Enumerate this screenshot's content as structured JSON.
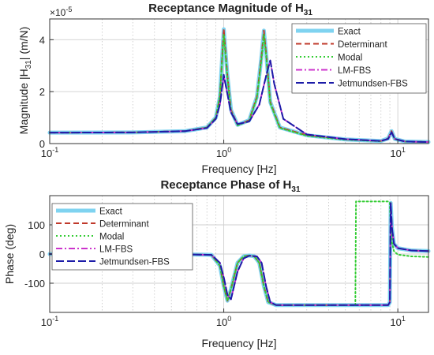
{
  "chart_data": [
    {
      "type": "line",
      "title": "Receptance Magnitude of",
      "title_sym": "H",
      "title_sub": "31",
      "xlabel": "Frequency [Hz]",
      "ylabel": "Magnitude  |H",
      "ylabel_sub": "31",
      "ylabel_unit": "|  (m/N)",
      "x_scale": "log",
      "xlim": [
        0.1,
        15
      ],
      "ylim": [
        0,
        4.8
      ],
      "y_multiplier": "×10",
      "y_multiplier_exp": "-5",
      "xticks": [
        0.1,
        1,
        10
      ],
      "xtick_labels": [
        "10",
        "10",
        "10"
      ],
      "xtick_exps": [
        "-1",
        "0",
        "1"
      ],
      "yticks": [
        0,
        2,
        4
      ],
      "ytick_labels": [
        "0",
        "2",
        "4"
      ],
      "grid": true,
      "legend_position": "top-right",
      "series": [
        {
          "name": "Exact",
          "color": "#7fd3f0",
          "dash": "solid",
          "x": [
            0.1,
            0.3,
            0.6,
            0.8,
            0.9,
            0.95,
            1.0,
            1.05,
            1.1,
            1.2,
            1.4,
            1.55,
            1.65,
            1.7,
            1.75,
            1.85,
            2.1,
            3,
            5,
            8,
            8.8,
            9.2,
            9.6,
            11,
            15
          ],
          "y": [
            0.42,
            0.43,
            0.48,
            0.62,
            1.0,
            1.8,
            4.4,
            2.6,
            1.3,
            0.72,
            0.9,
            1.8,
            3.4,
            4.35,
            3.5,
            1.6,
            0.62,
            0.32,
            0.16,
            0.1,
            0.2,
            0.48,
            0.18,
            0.08,
            0.06
          ]
        },
        {
          "name": "Determinant",
          "color": "#c0392b",
          "dash": "7,4",
          "x": [
            0.1,
            0.3,
            0.6,
            0.8,
            0.9,
            0.95,
            1.0,
            1.05,
            1.1,
            1.2,
            1.4,
            1.55,
            1.65,
            1.7,
            1.75,
            1.85,
            2.1,
            3,
            5,
            8,
            8.8,
            9.2,
            9.6,
            11,
            15
          ],
          "y": [
            0.42,
            0.43,
            0.48,
            0.62,
            1.0,
            1.8,
            4.4,
            2.6,
            1.3,
            0.72,
            0.9,
            1.8,
            3.4,
            4.35,
            3.5,
            1.6,
            0.62,
            0.32,
            0.16,
            0.1,
            0.2,
            0.48,
            0.18,
            0.08,
            0.06
          ]
        },
        {
          "name": "Modal",
          "color": "#33cc33",
          "dash": "2,3",
          "x": [
            0.1,
            0.3,
            0.6,
            0.8,
            0.9,
            0.95,
            1.0,
            1.05,
            1.1,
            1.2,
            1.4,
            1.55,
            1.65,
            1.7,
            1.75,
            1.85,
            2.1,
            3,
            5,
            8,
            8.8,
            9.2,
            9.6,
            11,
            15
          ],
          "y": [
            0.42,
            0.43,
            0.48,
            0.62,
            1.0,
            1.85,
            4.2,
            2.5,
            1.25,
            0.7,
            0.88,
            1.75,
            3.3,
            4.2,
            3.4,
            1.55,
            0.6,
            0.3,
            0.15,
            0.09,
            0.18,
            0.44,
            0.17,
            0.08,
            0.06
          ]
        },
        {
          "name": "LM-FBS",
          "color": "#cc33cc",
          "dash": "8,3,2,3",
          "x": [
            0.1,
            0.3,
            0.6,
            0.8,
            0.9,
            0.95,
            1.0,
            1.05,
            1.1,
            1.2,
            1.4,
            1.6,
            1.75,
            1.85,
            1.95,
            2.2,
            3,
            5,
            8,
            8.8,
            9.2,
            9.6,
            11,
            15
          ],
          "y": [
            0.42,
            0.43,
            0.48,
            0.6,
            0.95,
            1.5,
            2.6,
            1.9,
            1.2,
            0.75,
            0.85,
            1.5,
            2.6,
            3.2,
            2.3,
            0.95,
            0.35,
            0.17,
            0.1,
            0.18,
            0.44,
            0.18,
            0.08,
            0.06
          ]
        },
        {
          "name": "Jetmundsen-FBS",
          "color": "#1c1ca8",
          "dash": "10,4",
          "x": [
            0.1,
            0.3,
            0.6,
            0.8,
            0.9,
            0.95,
            1.0,
            1.05,
            1.1,
            1.2,
            1.4,
            1.6,
            1.75,
            1.85,
            1.95,
            2.2,
            3,
            5,
            8,
            8.8,
            9.2,
            9.6,
            11,
            15
          ],
          "y": [
            0.42,
            0.43,
            0.48,
            0.6,
            0.95,
            1.5,
            2.65,
            1.9,
            1.2,
            0.75,
            0.85,
            1.5,
            2.6,
            3.2,
            2.3,
            0.95,
            0.35,
            0.17,
            0.1,
            0.18,
            0.44,
            0.18,
            0.08,
            0.06
          ]
        }
      ]
    },
    {
      "type": "line",
      "title": "Receptance Phase of",
      "title_sym": "H",
      "title_sub": "31",
      "xlabel": "Frequency [Hz]",
      "ylabel": "Phase (deg)",
      "x_scale": "log",
      "xlim": [
        0.1,
        15
      ],
      "ylim": [
        -200,
        200
      ],
      "xticks": [
        0.1,
        1,
        10
      ],
      "xtick_labels": [
        "10",
        "10",
        "10"
      ],
      "xtick_exps": [
        "-1",
        "0",
        "1"
      ],
      "yticks": [
        -100,
        0,
        100
      ],
      "ytick_labels": [
        "-100",
        "0",
        "100"
      ],
      "grid": true,
      "legend_position": "top-left",
      "series": [
        {
          "name": "Exact",
          "color": "#7fd3f0",
          "dash": "solid",
          "x": [
            0.1,
            0.5,
            0.85,
            0.95,
            1.0,
            1.05,
            1.1,
            1.2,
            1.3,
            1.4,
            1.5,
            1.6,
            1.7,
            1.8,
            2.0,
            3,
            5,
            8.8,
            9.0,
            9.1,
            9.25,
            9.5,
            10,
            12,
            15
          ],
          "y": [
            0,
            0,
            -3,
            -40,
            -110,
            -160,
            -120,
            -30,
            -8,
            -5,
            -8,
            -30,
            -110,
            -165,
            -175,
            -175,
            -175,
            -175,
            -165,
            175,
            90,
            35,
            20,
            12,
            10
          ]
        },
        {
          "name": "Determinant",
          "color": "#c0392b",
          "dash": "7,4",
          "x": [
            0.1,
            0.5,
            0.85,
            0.95,
            1.0,
            1.05,
            1.1,
            1.2,
            1.3,
            1.4,
            1.5,
            1.6,
            1.7,
            1.8,
            2.0,
            3,
            5,
            8.8,
            9.0,
            9.1,
            9.25,
            9.5,
            10,
            12,
            15
          ],
          "y": [
            0,
            0,
            -3,
            -40,
            -110,
            -160,
            -120,
            -30,
            -8,
            -5,
            -8,
            -30,
            -110,
            -165,
            -175,
            -175,
            -175,
            -175,
            -165,
            175,
            90,
            35,
            20,
            12,
            10
          ]
        },
        {
          "name": "Modal",
          "color": "#33cc33",
          "dash": "2,3",
          "x": [
            0.1,
            0.5,
            0.85,
            0.95,
            1.0,
            1.05,
            1.1,
            1.2,
            1.3,
            1.4,
            1.5,
            1.6,
            1.7,
            1.8,
            2.0,
            3,
            5.5,
            5.7,
            5.75,
            8.8,
            9.0,
            9.1,
            9.25,
            9.5,
            10,
            12,
            15
          ],
          "y": [
            0,
            0,
            -3,
            -40,
            -110,
            -160,
            -120,
            -30,
            -8,
            -5,
            -8,
            -30,
            -110,
            -165,
            -175,
            -175,
            -175,
            -175,
            180,
            180,
            175,
            95,
            40,
            10,
            -2,
            -8,
            -10
          ]
        },
        {
          "name": "LM-FBS",
          "color": "#cc33cc",
          "dash": "8,3,2,3",
          "x": [
            0.1,
            0.5,
            0.85,
            0.95,
            1.0,
            1.05,
            1.1,
            1.2,
            1.3,
            1.4,
            1.55,
            1.65,
            1.75,
            1.85,
            2.0,
            3,
            5,
            8.8,
            9.0,
            9.1,
            9.25,
            9.5,
            10,
            12,
            15
          ],
          "y": [
            0,
            0,
            -3,
            -30,
            -80,
            -140,
            -155,
            -60,
            -15,
            -6,
            -8,
            -30,
            -110,
            -165,
            -175,
            -175,
            -175,
            -175,
            -165,
            175,
            90,
            35,
            20,
            12,
            10
          ]
        },
        {
          "name": "Jetmundsen-FBS",
          "color": "#1c1ca8",
          "dash": "10,4",
          "x": [
            0.1,
            0.5,
            0.85,
            0.95,
            1.0,
            1.05,
            1.1,
            1.2,
            1.3,
            1.4,
            1.55,
            1.65,
            1.75,
            1.85,
            2.0,
            3,
            5,
            8.8,
            9.0,
            9.1,
            9.25,
            9.5,
            10,
            12,
            15
          ],
          "y": [
            0,
            0,
            -3,
            -30,
            -80,
            -140,
            -155,
            -60,
            -15,
            -6,
            -8,
            -30,
            -110,
            -165,
            -175,
            -175,
            -175,
            -175,
            -165,
            175,
            90,
            35,
            20,
            12,
            10
          ]
        }
      ]
    }
  ]
}
